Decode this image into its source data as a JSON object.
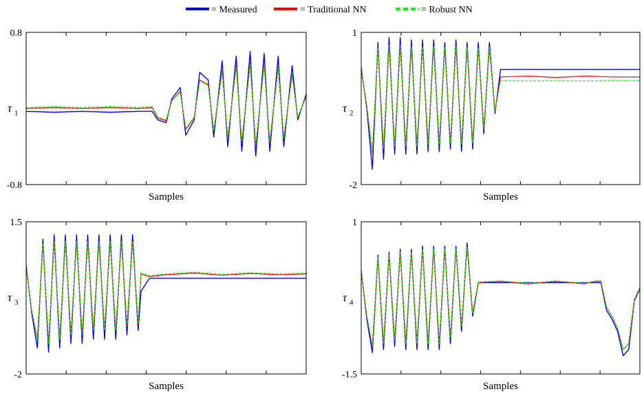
{
  "legend": {
    "position": "top-center",
    "entries": [
      {
        "label": "= Measured",
        "color": "#0000ff",
        "dash": "solid"
      },
      {
        "label": "= Traditional NN",
        "color": "#ff0000",
        "dash": "solid"
      },
      {
        "label": "= Robust NN",
        "color": "#00ff00",
        "dash": "dashed"
      }
    ]
  },
  "chart_data": [
    {
      "type": "line",
      "xlabel": "Samples",
      "ylabel": {
        "symbol": "τ",
        "subscript": "1"
      },
      "ylim": [
        -0.8,
        0.8
      ],
      "yticks": [
        "0.8",
        "-0.8"
      ],
      "grid": false,
      "x": [
        0,
        10,
        20,
        30,
        40,
        45,
        47,
        50,
        52,
        55,
        57,
        60,
        62,
        65,
        67,
        70,
        72,
        75,
        77,
        80,
        82,
        85,
        87,
        90,
        92,
        95,
        97,
        100
      ],
      "series": [
        {
          "name": "Measured",
          "color": "#0000ff",
          "values": [
            -0.03,
            -0.04,
            -0.03,
            -0.04,
            -0.03,
            -0.03,
            -0.12,
            -0.15,
            0.1,
            0.22,
            -0.28,
            -0.12,
            0.38,
            0.3,
            -0.3,
            0.5,
            -0.4,
            0.55,
            -0.45,
            0.6,
            -0.5,
            0.58,
            -0.45,
            0.55,
            -0.4,
            0.45,
            -0.12,
            0.15
          ]
        },
        {
          "name": "Traditional NN",
          "color": "#ff0000",
          "values": [
            0.0,
            0.01,
            0.0,
            0.01,
            0.0,
            0.01,
            -0.1,
            -0.13,
            0.08,
            0.18,
            -0.22,
            -0.1,
            0.3,
            0.25,
            -0.24,
            0.4,
            -0.32,
            0.45,
            -0.36,
            0.48,
            -0.4,
            0.47,
            -0.36,
            0.44,
            -0.32,
            0.36,
            -0.1,
            0.13
          ]
        },
        {
          "name": "Robust NN",
          "color": "#00ff00",
          "values": [
            0.01,
            0.02,
            0.01,
            0.02,
            0.01,
            0.02,
            -0.09,
            -0.12,
            0.08,
            0.17,
            -0.21,
            -0.09,
            0.29,
            0.24,
            -0.23,
            0.39,
            -0.31,
            0.44,
            -0.35,
            0.47,
            -0.39,
            0.46,
            -0.35,
            0.43,
            -0.31,
            0.35,
            -0.09,
            0.12
          ]
        }
      ]
    },
    {
      "type": "line",
      "xlabel": "Samples",
      "ylabel": {
        "symbol": "τ",
        "subscript": "2"
      },
      "ylim": [
        -2,
        1
      ],
      "yticks": [
        "1",
        "-2"
      ],
      "grid": false,
      "x": [
        0,
        2,
        4,
        6,
        8,
        10,
        12,
        14,
        16,
        18,
        20,
        22,
        24,
        26,
        28,
        30,
        32,
        34,
        36,
        38,
        40,
        42,
        44,
        46,
        48,
        50,
        60,
        70,
        80,
        90,
        100
      ],
      "series": [
        {
          "name": "Measured",
          "color": "#0000ff",
          "values": [
            0.3,
            -0.5,
            -1.7,
            0.8,
            -1.5,
            0.9,
            -1.4,
            0.9,
            -1.4,
            0.85,
            -1.4,
            0.85,
            -1.35,
            0.85,
            -1.35,
            0.8,
            -1.3,
            0.85,
            -1.35,
            0.8,
            -1.3,
            0.8,
            -1.0,
            0.8,
            -0.6,
            0.27,
            0.27,
            0.27,
            0.27,
            0.27,
            0.27
          ]
        },
        {
          "name": "Traditional NN",
          "color": "#ff0000",
          "values": [
            0.25,
            -0.45,
            -1.4,
            0.7,
            -1.3,
            0.75,
            -1.25,
            0.75,
            -1.25,
            0.72,
            -1.25,
            0.72,
            -1.2,
            0.72,
            -1.2,
            0.7,
            -1.18,
            0.72,
            -1.2,
            0.7,
            -1.18,
            0.7,
            -0.9,
            0.7,
            -0.55,
            0.12,
            0.14,
            0.11,
            0.14,
            0.12,
            0.12
          ]
        },
        {
          "name": "Robust NN",
          "color": "#00ff00",
          "values": [
            0.25,
            -0.45,
            -1.38,
            0.7,
            -1.28,
            0.75,
            -1.24,
            0.75,
            -1.24,
            0.72,
            -1.24,
            0.72,
            -1.2,
            0.72,
            -1.2,
            0.7,
            -1.18,
            0.72,
            -1.2,
            0.7,
            -1.18,
            0.7,
            -0.9,
            0.7,
            -0.55,
            0.05,
            0.04,
            0.05,
            0.04,
            0.05,
            0.05
          ]
        }
      ]
    },
    {
      "type": "line",
      "xlabel": "Samples",
      "ylabel": {
        "symbol": "τ",
        "subscript": "3"
      },
      "ylim": [
        -2,
        1.5
      ],
      "yticks": [
        "1.5",
        "-2"
      ],
      "grid": false,
      "x": [
        0,
        2,
        4,
        6,
        8,
        10,
        12,
        14,
        16,
        18,
        20,
        22,
        24,
        26,
        28,
        30,
        32,
        34,
        36,
        38,
        40,
        41,
        44,
        50,
        60,
        70,
        80,
        90,
        100
      ],
      "series": [
        {
          "name": "Measured",
          "color": "#0000ff",
          "values": [
            0.5,
            -0.6,
            -1.4,
            1.1,
            -1.5,
            1.2,
            -1.4,
            1.2,
            -1.3,
            1.2,
            -1.3,
            1.2,
            -1.2,
            1.2,
            -1.2,
            1.2,
            -1.2,
            1.2,
            -1.1,
            1.2,
            -1.0,
            -0.1,
            0.2,
            0.2,
            0.2,
            0.2,
            0.2,
            0.2,
            0.2
          ]
        },
        {
          "name": "Traditional NN",
          "color": "#ff0000",
          "values": [
            0.45,
            -0.55,
            -1.2,
            1.0,
            -1.3,
            1.05,
            -1.2,
            1.05,
            -1.1,
            1.05,
            -1.1,
            1.05,
            -1.0,
            1.05,
            -1.0,
            1.05,
            -1.0,
            1.05,
            -0.9,
            1.05,
            -0.85,
            0.3,
            0.24,
            0.28,
            0.32,
            0.27,
            0.31,
            0.28,
            0.3
          ]
        },
        {
          "name": "Robust NN",
          "color": "#00ff00",
          "values": [
            0.45,
            -0.55,
            -1.2,
            1.0,
            -1.3,
            1.05,
            -1.2,
            1.05,
            -1.1,
            1.05,
            -1.1,
            1.05,
            -1.0,
            1.05,
            -1.0,
            1.05,
            -1.0,
            1.05,
            -0.9,
            1.05,
            -0.85,
            0.32,
            0.26,
            0.3,
            0.34,
            0.29,
            0.33,
            0.3,
            0.32
          ]
        }
      ]
    },
    {
      "type": "line",
      "xlabel": "Samples",
      "ylabel": {
        "symbol": "τ",
        "subscript": "4"
      },
      "ylim": [
        -1.5,
        1
      ],
      "yticks": [
        "1",
        "-1.5"
      ],
      "grid": false,
      "x": [
        0,
        2,
        4,
        6,
        8,
        10,
        12,
        14,
        16,
        18,
        20,
        22,
        24,
        26,
        28,
        30,
        32,
        34,
        36,
        38,
        40,
        42,
        50,
        60,
        70,
        80,
        84,
        86,
        88,
        90,
        92,
        94,
        96,
        98,
        100
      ],
      "series": [
        {
          "name": "Measured",
          "color": "#0000ff",
          "values": [
            0.2,
            -0.6,
            -1.15,
            0.45,
            -1.1,
            0.5,
            -1.05,
            0.55,
            -1.1,
            0.55,
            -1.1,
            0.6,
            -1.1,
            0.6,
            -1.1,
            0.6,
            -1.0,
            0.6,
            -0.8,
            0.65,
            -0.55,
            0.0,
            0.0,
            0.0,
            0.0,
            0.0,
            0.0,
            0.0,
            -0.45,
            -0.6,
            -0.8,
            -1.2,
            -1.1,
            -0.3,
            -0.1
          ]
        },
        {
          "name": "Traditional NN",
          "color": "#ff0000",
          "values": [
            0.18,
            -0.55,
            -1.05,
            0.42,
            -1.0,
            0.46,
            -0.95,
            0.5,
            -1.0,
            0.5,
            -1.0,
            0.55,
            -1.0,
            0.55,
            -1.0,
            0.55,
            -0.9,
            0.55,
            -0.72,
            0.58,
            -0.5,
            0.0,
            0.02,
            -0.02,
            0.02,
            -0.02,
            0.02,
            0.02,
            -0.4,
            -0.55,
            -0.75,
            -1.1,
            -1.0,
            -0.28,
            -0.08
          ]
        },
        {
          "name": "Robust NN",
          "color": "#00ff00",
          "values": [
            0.18,
            -0.55,
            -1.04,
            0.42,
            -1.0,
            0.46,
            -0.95,
            0.5,
            -1.0,
            0.5,
            -1.0,
            0.55,
            -1.0,
            0.55,
            -1.0,
            0.55,
            -0.9,
            0.55,
            -0.72,
            0.58,
            -0.5,
            0.01,
            0.03,
            -0.01,
            0.03,
            -0.01,
            0.03,
            0.03,
            -0.4,
            -0.55,
            -0.75,
            -1.1,
            -1.0,
            -0.28,
            -0.08
          ]
        }
      ]
    }
  ]
}
